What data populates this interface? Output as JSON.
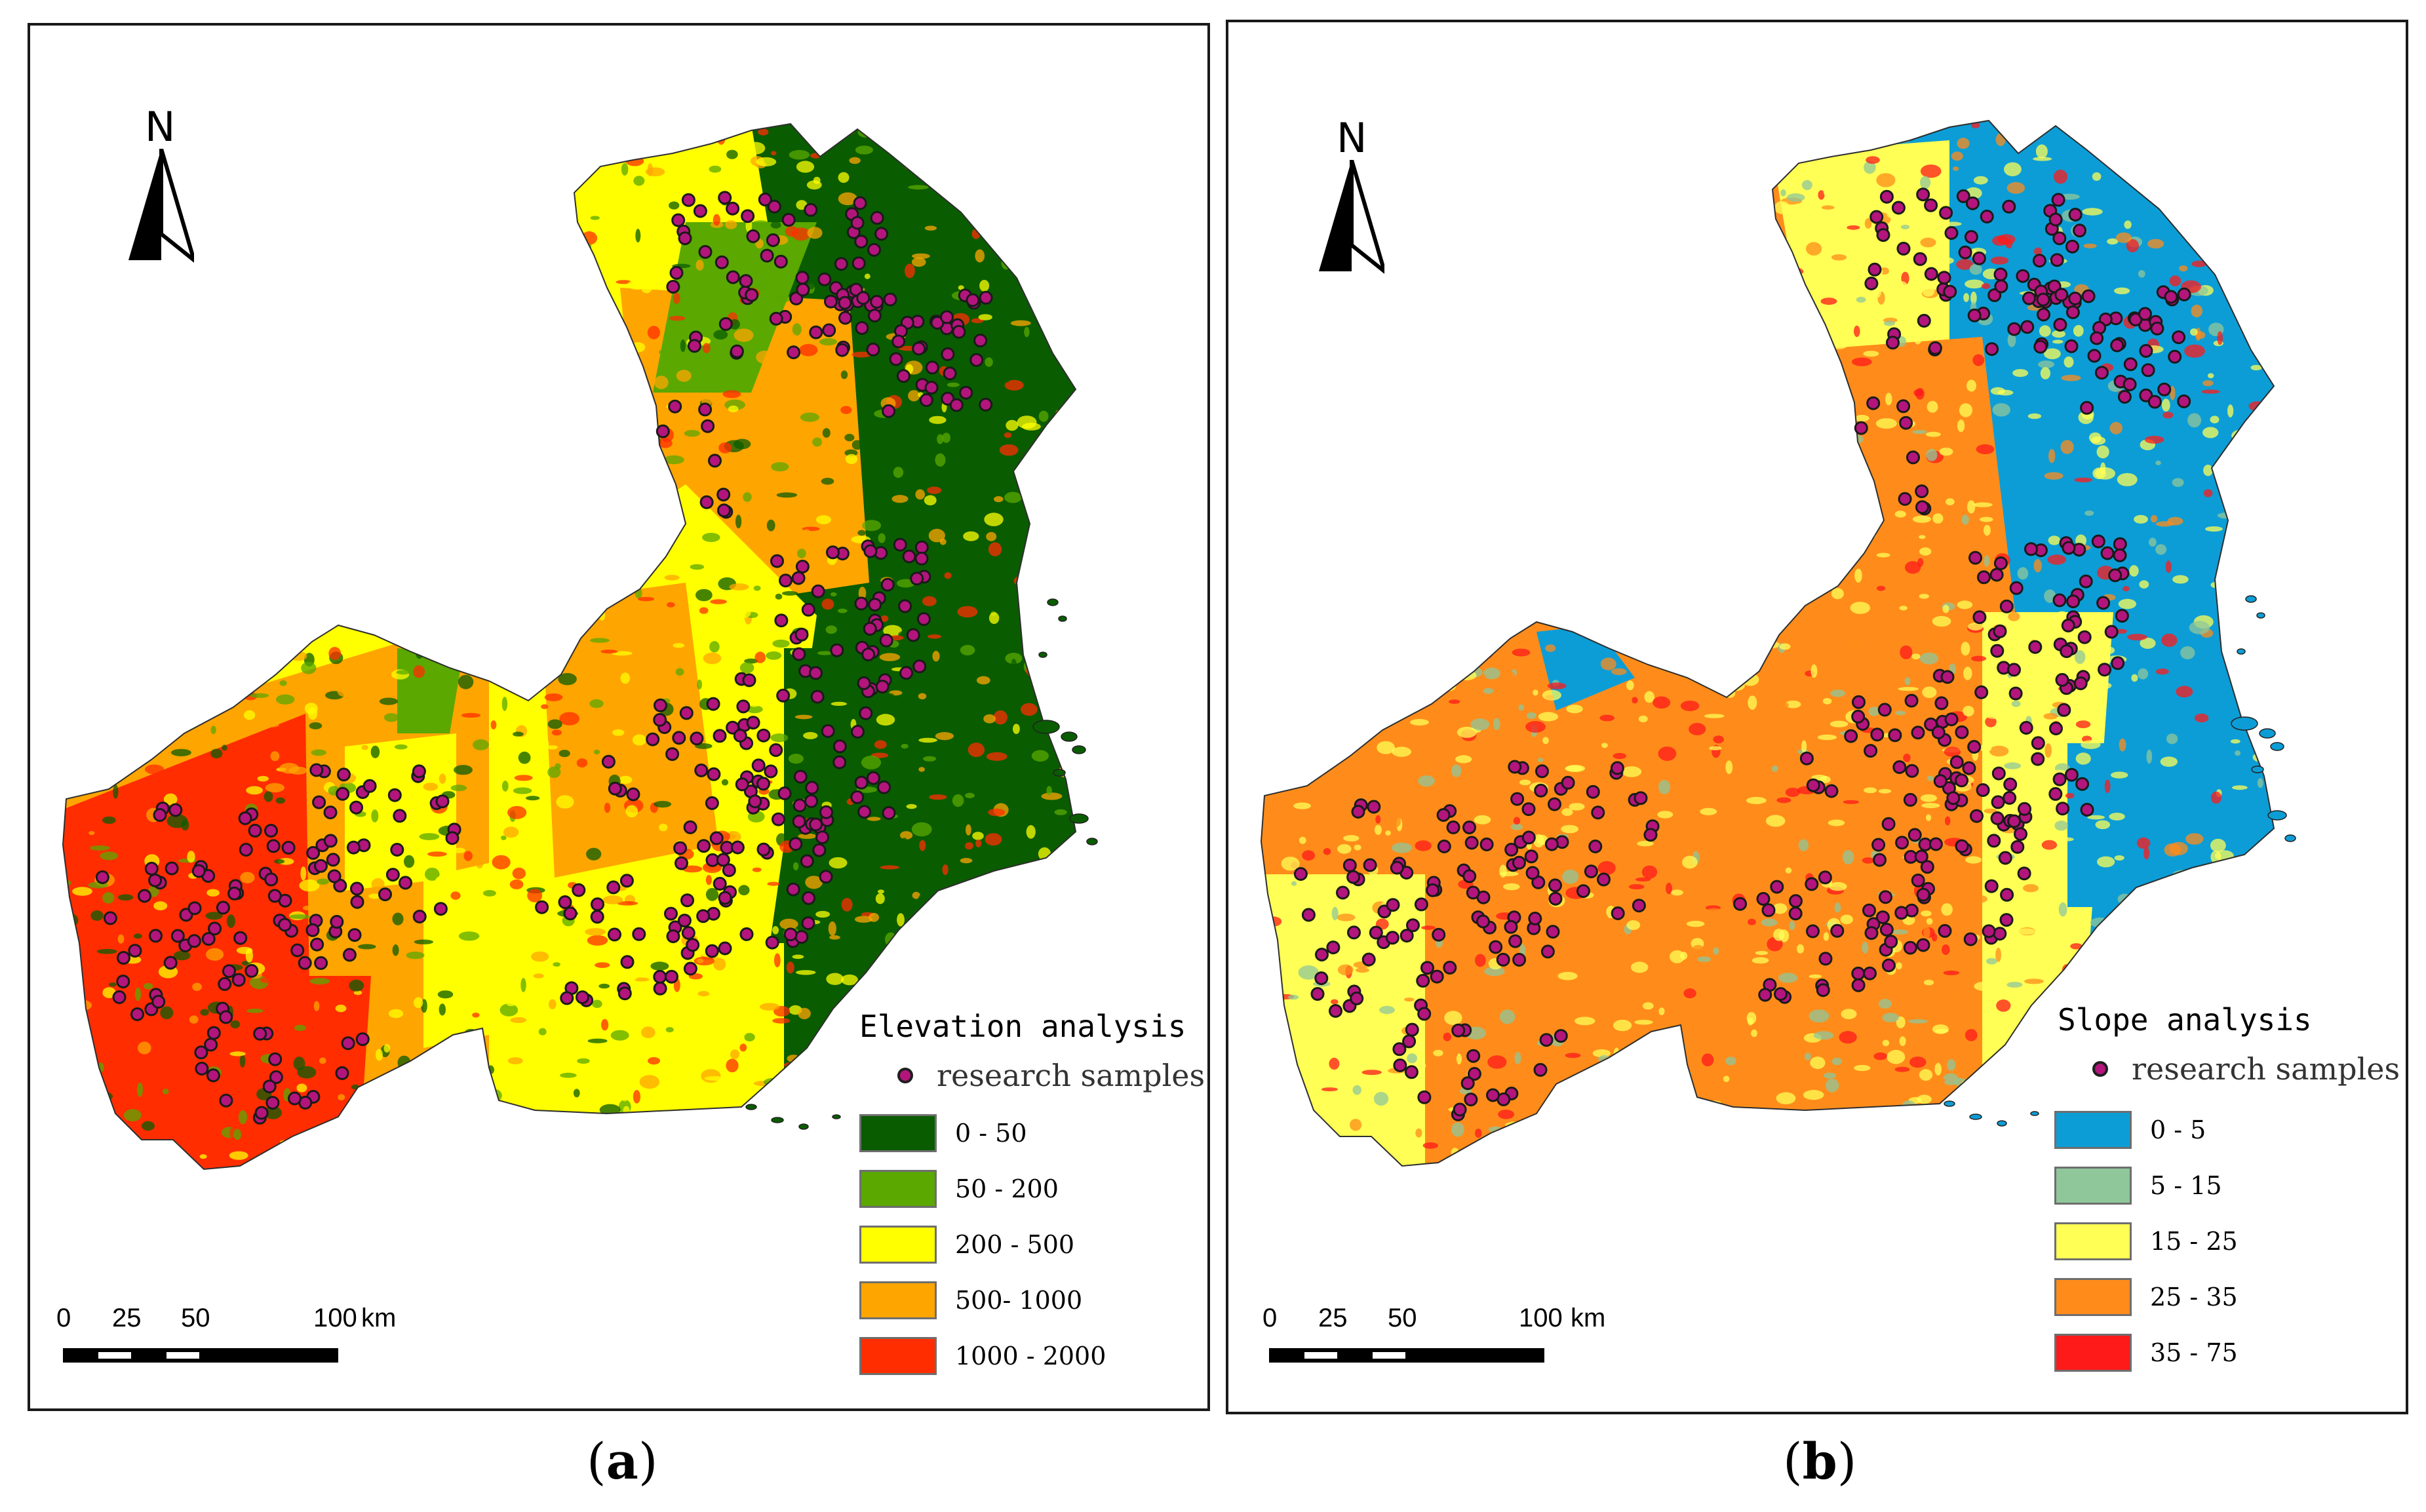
{
  "panels": [
    {
      "id": "a",
      "north_label": "N",
      "legend_title": "Elevation analysis",
      "samples_label": "research samples",
      "classes": [
        {
          "label": "0 - 50",
          "color": "#0a5c00"
        },
        {
          "label": "50 - 200",
          "color": "#5aa800"
        },
        {
          "label": "200 - 500",
          "color": "#ffff00"
        },
        {
          "label": "500- 1000",
          "color": "#ffa500"
        },
        {
          "label": "1000 - 2000",
          "color": "#ff2d00"
        }
      ],
      "scale": {
        "ticks": [
          "0",
          "25",
          "50",
          "100"
        ],
        "unit": "km"
      },
      "caption": "a"
    },
    {
      "id": "b",
      "north_label": "N",
      "legend_title": "Slope analysis",
      "samples_label": "research samples",
      "classes": [
        {
          "label": "0 - 5",
          "color": "#0c9dd6"
        },
        {
          "label": "5 - 15",
          "color": "#8fc79a"
        },
        {
          "label": "15 - 25",
          "color": "#ffff55"
        },
        {
          "label": "25 - 35",
          "color": "#ff8c1a"
        },
        {
          "label": "35 - 75",
          "color": "#ff1a1a"
        }
      ],
      "scale": {
        "ticks": [
          "0",
          "25",
          "50",
          "100"
        ],
        "unit": "km"
      },
      "caption": "b"
    }
  ],
  "sample_color": "#b3157c",
  "icons": {
    "north_arrow": "north-arrow-icon",
    "sample": "sample-point-icon"
  }
}
